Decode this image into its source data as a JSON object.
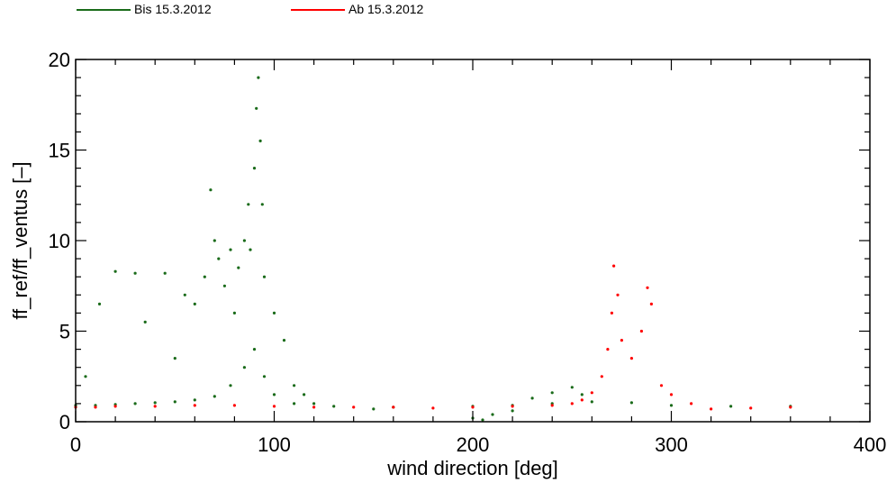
{
  "chart_data": {
    "type": "scatter",
    "xlabel": "wind direction [deg]",
    "ylabel": "ff_ref/ff_ventus [–]",
    "xlim": [
      0,
      400
    ],
    "ylim": [
      0,
      20
    ],
    "xticks": [
      "0",
      "100",
      "200",
      "300",
      "400"
    ],
    "yticks": [
      "0",
      "5",
      "10",
      "15",
      "20"
    ],
    "grid": false,
    "legend_position": "top-left",
    "series": [
      {
        "name": "Bis 15.3.2012",
        "color": "#1a6b1a",
        "points": [
          [
            0,
            0.9
          ],
          [
            10,
            0.9
          ],
          [
            20,
            0.95
          ],
          [
            30,
            1.0
          ],
          [
            40,
            1.05
          ],
          [
            50,
            1.1
          ],
          [
            60,
            1.2
          ],
          [
            70,
            1.4
          ],
          [
            78,
            2.0
          ],
          [
            85,
            3.0
          ],
          [
            90,
            4.0
          ],
          [
            95,
            2.5
          ],
          [
            100,
            1.5
          ],
          [
            110,
            1.0
          ],
          [
            130,
            0.85
          ],
          [
            160,
            0.8
          ],
          [
            200,
            0.85
          ],
          [
            220,
            0.9
          ],
          [
            240,
            1.0
          ],
          [
            260,
            1.1
          ],
          [
            280,
            1.05
          ],
          [
            300,
            0.9
          ],
          [
            330,
            0.85
          ],
          [
            360,
            0.85
          ],
          [
            5,
            2.5
          ],
          [
            12,
            6.5
          ],
          [
            20,
            8.3
          ],
          [
            30,
            8.2
          ],
          [
            35,
            5.5
          ],
          [
            45,
            8.2
          ],
          [
            50,
            3.5
          ],
          [
            55,
            7.0
          ],
          [
            60,
            6.5
          ],
          [
            65,
            8.0
          ],
          [
            68,
            12.8
          ],
          [
            70,
            10.0
          ],
          [
            72,
            9.0
          ],
          [
            75,
            7.5
          ],
          [
            78,
            9.5
          ],
          [
            80,
            6.0
          ],
          [
            82,
            8.5
          ],
          [
            85,
            10.0
          ],
          [
            87,
            12.0
          ],
          [
            88,
            9.5
          ],
          [
            90,
            14.0
          ],
          [
            91,
            17.3
          ],
          [
            92,
            19.0
          ],
          [
            93,
            15.5
          ],
          [
            94,
            12.0
          ],
          [
            95,
            8.0
          ],
          [
            100,
            6.0
          ],
          [
            105,
            4.5
          ],
          [
            110,
            2.0
          ],
          [
            115,
            1.5
          ],
          [
            120,
            1.0
          ],
          [
            150,
            0.7
          ],
          [
            200,
            0.2
          ],
          [
            205,
            0.1
          ],
          [
            210,
            0.4
          ],
          [
            220,
            0.6
          ],
          [
            230,
            1.3
          ],
          [
            240,
            1.6
          ],
          [
            250,
            1.9
          ],
          [
            255,
            1.5
          ]
        ]
      },
      {
        "name": "Ab 15.3.2012",
        "color": "#ff0000",
        "points": [
          [
            0,
            0.8
          ],
          [
            10,
            0.8
          ],
          [
            20,
            0.85
          ],
          [
            40,
            0.85
          ],
          [
            60,
            0.9
          ],
          [
            80,
            0.9
          ],
          [
            100,
            0.85
          ],
          [
            120,
            0.8
          ],
          [
            140,
            0.8
          ],
          [
            160,
            0.8
          ],
          [
            180,
            0.75
          ],
          [
            200,
            0.8
          ],
          [
            220,
            0.85
          ],
          [
            240,
            0.9
          ],
          [
            250,
            1.0
          ],
          [
            255,
            1.2
          ],
          [
            260,
            1.6
          ],
          [
            265,
            2.5
          ],
          [
            268,
            4.0
          ],
          [
            270,
            6.0
          ],
          [
            271,
            8.6
          ],
          [
            273,
            7.0
          ],
          [
            275,
            4.5
          ],
          [
            280,
            3.5
          ],
          [
            285,
            5.0
          ],
          [
            288,
            7.4
          ],
          [
            290,
            6.5
          ],
          [
            295,
            2.0
          ],
          [
            300,
            1.5
          ],
          [
            310,
            1.0
          ],
          [
            320,
            0.7
          ],
          [
            340,
            0.75
          ],
          [
            360,
            0.8
          ]
        ]
      }
    ]
  }
}
